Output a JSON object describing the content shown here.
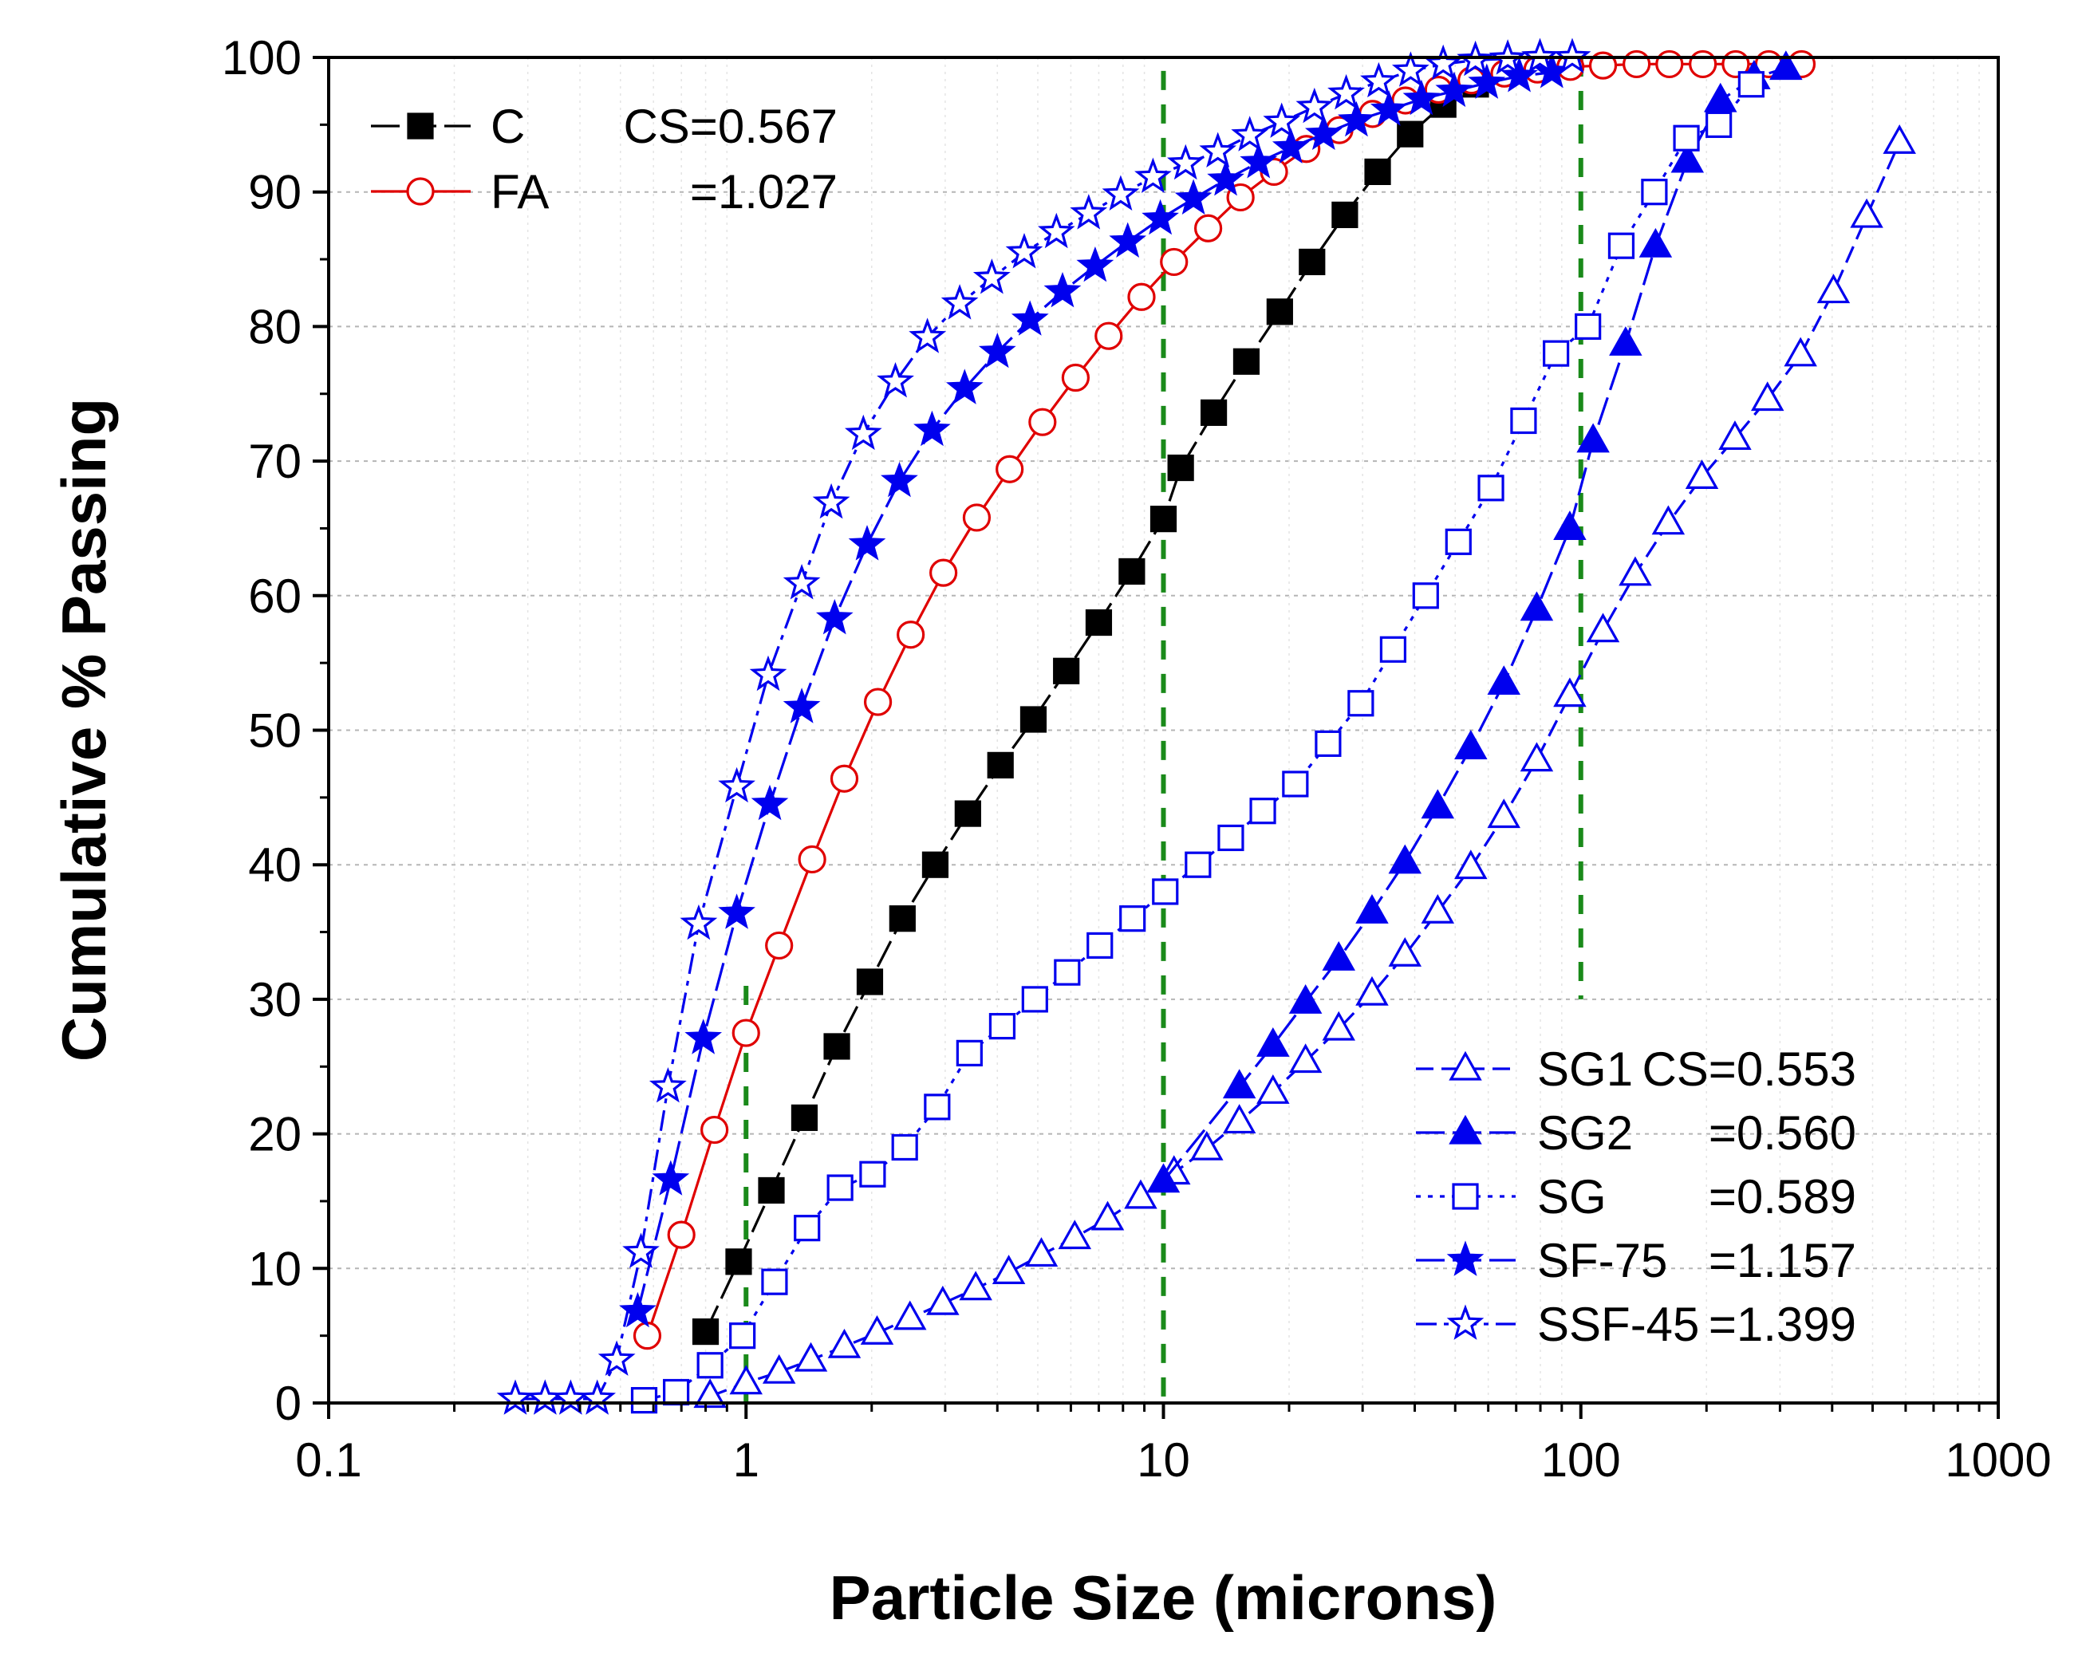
{
  "chart_data": {
    "type": "line",
    "xscale": "log",
    "xlabel": "Particle Size (microns)",
    "ylabel": "Cumulative % Passing",
    "xlim": [
      0.1,
      1000
    ],
    "ylim": [
      0,
      100
    ],
    "x_ticks": [
      0.1,
      1,
      10,
      100,
      1000
    ],
    "x_tick_labels": [
      "0.1",
      "1",
      "10",
      "100",
      "1000"
    ],
    "y_ticks": [
      0,
      10,
      20,
      30,
      40,
      50,
      60,
      70,
      80,
      90,
      100
    ],
    "y_tick_labels": [
      "0",
      "10",
      "20",
      "30",
      "40",
      "50",
      "60",
      "70",
      "80",
      "90",
      "100"
    ],
    "gridlines": "horizontal dotted",
    "reference_lines": [
      1,
      10,
      100
    ],
    "reference_line_color": "#1a8a1a",
    "legends": [
      {
        "position": "top-left",
        "entries": [
          {
            "series": "C",
            "name": "C",
            "value": "CS=0.567"
          },
          {
            "series": "FA",
            "name": "FA",
            "value": "=1.027"
          }
        ]
      },
      {
        "position": "bottom-right",
        "entries": [
          {
            "series": "SG1",
            "name": "SG1",
            "value": "CS=0.553"
          },
          {
            "series": "SG2",
            "name": "SG2",
            "value": "=0.560"
          },
          {
            "series": "SG",
            "name": "SG",
            "value": "=0.589"
          },
          {
            "series": "SF-75",
            "name": "SF-75",
            "value": "=1.157"
          },
          {
            "series": "SSF-45",
            "name": "SSF-45",
            "value": "=1.399"
          }
        ]
      }
    ],
    "series": [
      {
        "name": "C",
        "color": "#000000",
        "marker": "square",
        "filled": true,
        "dash": "long-dash",
        "x": [
          0.8,
          0.96,
          1.15,
          1.38,
          1.65,
          1.98,
          2.37,
          2.84,
          3.4,
          4.07,
          4.88,
          5.85,
          7.0,
          8.4,
          10.0,
          11.0,
          13.2,
          15.8,
          19.0,
          22.7,
          27.2,
          32.6,
          39.0,
          46.8,
          56.0
        ],
        "y": [
          5.3,
          10.5,
          15.8,
          21.2,
          26.5,
          31.3,
          36.0,
          40.0,
          43.8,
          47.4,
          50.8,
          54.4,
          58.0,
          61.8,
          65.7,
          69.5,
          73.6,
          77.4,
          81.1,
          84.8,
          88.3,
          91.5,
          94.3,
          96.5,
          98.0
        ]
      },
      {
        "name": "FA",
        "color": "#e00000",
        "marker": "circle",
        "filled": false,
        "dash": "solid",
        "x": [
          0.58,
          0.7,
          0.84,
          1.0,
          1.2,
          1.44,
          1.72,
          2.07,
          2.48,
          2.97,
          3.57,
          4.28,
          5.13,
          6.16,
          7.39,
          8.86,
          10.6,
          12.8,
          15.3,
          18.4,
          22.0,
          26.4,
          31.7,
          38.0,
          45.6,
          54.7,
          65.6,
          78.7,
          94.4,
          113,
          136,
          163,
          196,
          235,
          282,
          338
        ],
        "y": [
          5.0,
          12.5,
          20.3,
          27.5,
          34.0,
          40.4,
          46.4,
          52.1,
          57.1,
          61.7,
          65.8,
          69.4,
          72.9,
          76.2,
          79.3,
          82.2,
          84.8,
          87.3,
          89.6,
          91.5,
          93.2,
          94.6,
          95.8,
          96.8,
          97.6,
          98.3,
          98.8,
          99.1,
          99.3,
          99.4,
          99.5,
          99.5,
          99.5,
          99.5,
          99.5,
          99.5
        ]
      },
      {
        "name": "SG1",
        "color": "#0000ee",
        "marker": "triangle",
        "filled": false,
        "dash": "dash",
        "x": [
          0.82,
          1.0,
          1.2,
          1.43,
          1.72,
          2.06,
          2.47,
          2.96,
          3.55,
          4.26,
          5.1,
          6.13,
          7.35,
          8.82,
          10.6,
          12.7,
          15.2,
          18.3,
          21.9,
          26.3,
          31.6,
          37.9,
          45.4,
          54.5,
          65.4,
          78.4,
          94.1,
          113,
          135,
          162,
          195,
          234,
          280,
          336,
          403,
          484,
          580
        ],
        "y": [
          0.5,
          1.5,
          2.3,
          3.2,
          4.2,
          5.2,
          6.3,
          7.4,
          8.5,
          9.7,
          11.0,
          12.3,
          13.7,
          15.3,
          17.1,
          18.9,
          20.9,
          23.1,
          25.4,
          27.8,
          30.4,
          33.3,
          36.5,
          39.8,
          43.6,
          47.8,
          52.6,
          57.4,
          61.6,
          65.4,
          68.8,
          71.7,
          74.6,
          77.9,
          82.6,
          88.2,
          93.7
        ]
      },
      {
        "name": "SG2",
        "color": "#0000ee",
        "marker": "triangle",
        "filled": true,
        "dash": "long-dash",
        "x": [
          10.0,
          15.2,
          18.3,
          21.9,
          26.3,
          31.6,
          37.9,
          45.4,
          54.5,
          65.4,
          78.4,
          94.1,
          107,
          128,
          151,
          180,
          216,
          260,
          310
        ],
        "y": [
          16.5,
          23.5,
          26.6,
          29.8,
          33.0,
          36.5,
          40.2,
          44.3,
          48.7,
          53.5,
          59.0,
          65.0,
          71.5,
          78.7,
          86.0,
          92.3,
          96.8,
          98.5,
          99.2
        ]
      },
      {
        "name": "SG",
        "color": "#0000ee",
        "marker": "square",
        "filled": false,
        "dash": "dot",
        "x": [
          0.57,
          0.68,
          0.82,
          0.98,
          1.17,
          1.4,
          1.68,
          2.01,
          2.4,
          2.87,
          3.43,
          4.11,
          4.92,
          5.88,
          7.04,
          8.43,
          10.1,
          12.1,
          14.5,
          17.3,
          20.7,
          24.8,
          29.7,
          35.5,
          42.5,
          50.9,
          60.9,
          72.9,
          87.2,
          104,
          125,
          150,
          179,
          214,
          256
        ],
        "y": [
          0.2,
          0.8,
          2.8,
          5.0,
          9.0,
          13.0,
          16.0,
          17.0,
          19.0,
          22.0,
          26.0,
          28.0,
          30.0,
          32.0,
          34.0,
          36.0,
          38.0,
          40.0,
          42.0,
          44.0,
          46.0,
          49.0,
          52.0,
          56.0,
          60.0,
          64.0,
          68.0,
          73.0,
          78.0,
          80.0,
          86.0,
          90.0,
          94.0,
          95.0,
          98.0
        ]
      },
      {
        "name": "SF-75",
        "color": "#0000ee",
        "marker": "star",
        "filled": true,
        "dash": "long-dash",
        "x": [
          0.55,
          0.66,
          0.79,
          0.95,
          1.14,
          1.36,
          1.63,
          1.95,
          2.33,
          2.79,
          3.34,
          4.0,
          4.79,
          5.73,
          6.86,
          8.21,
          9.83,
          11.8,
          14.1,
          16.9,
          20.2,
          24.2,
          29.0,
          34.7,
          41.5,
          49.7,
          59.5,
          71.2,
          85.2
        ],
        "y": [
          6.8,
          16.6,
          27.1,
          36.4,
          44.5,
          51.7,
          58.3,
          63.8,
          68.5,
          72.3,
          75.4,
          78.1,
          80.5,
          82.6,
          84.5,
          86.3,
          88.0,
          89.5,
          90.9,
          92.2,
          93.3,
          94.3,
          95.3,
          96.1,
          96.9,
          97.5,
          98.1,
          98.6,
          98.9
        ]
      },
      {
        "name": "SSF-45",
        "color": "#0000ee",
        "marker": "star",
        "filled": false,
        "dash": "dash-dot",
        "x": [
          0.28,
          0.33,
          0.38,
          0.44,
          0.49,
          0.56,
          0.65,
          0.77,
          0.95,
          1.13,
          1.36,
          1.6,
          1.91,
          2.28,
          2.72,
          3.25,
          3.88,
          4.64,
          5.54,
          6.62,
          7.9,
          9.44,
          11.3,
          13.5,
          16.1,
          19.2,
          23.0,
          27.4,
          32.8,
          39.1,
          46.8,
          55.9,
          66.8,
          79.8,
          95.4
        ],
        "y": [
          0.3,
          0.3,
          0.3,
          0.3,
          3.2,
          11.2,
          23.5,
          35.6,
          45.8,
          54.1,
          60.9,
          66.9,
          72.0,
          75.9,
          79.2,
          81.7,
          83.6,
          85.5,
          87.0,
          88.4,
          89.8,
          91.1,
          92.1,
          93.0,
          94.2,
          95.2,
          96.3,
          97.3,
          98.2,
          99.0,
          99.5,
          99.8,
          99.9,
          100.0,
          100.0
        ]
      }
    ]
  }
}
